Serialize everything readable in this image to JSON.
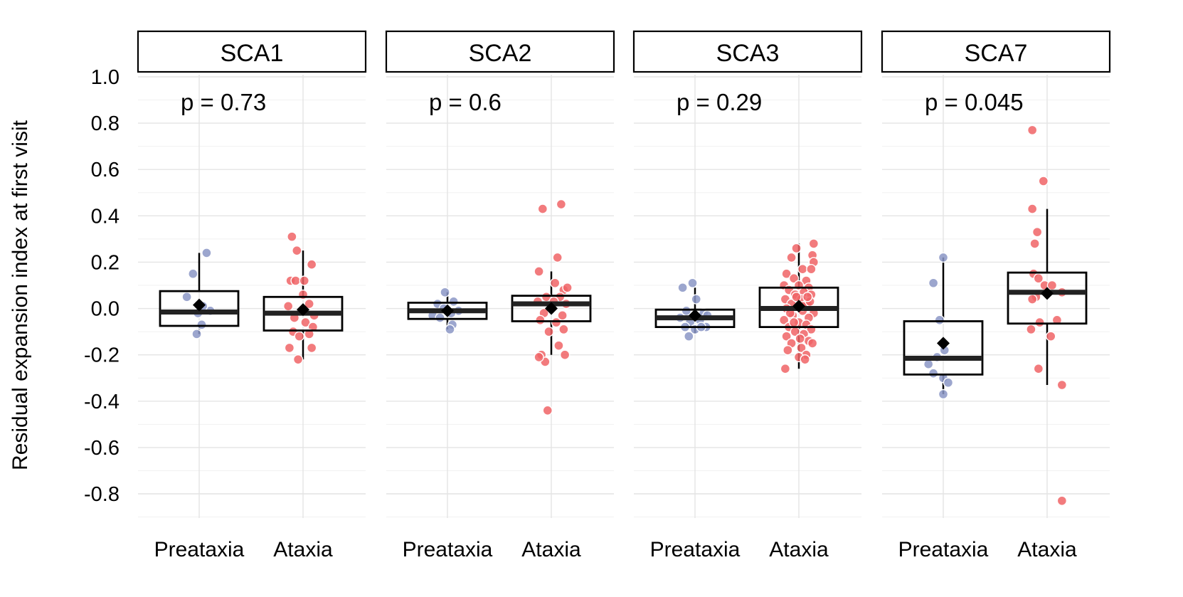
{
  "chart_data": {
    "type": "boxplot-faceted",
    "ylabel": "Residual expansion index at first visit",
    "ylim": [
      -0.9,
      1.0
    ],
    "yticks": [
      1.0,
      0.8,
      0.6,
      0.4,
      0.2,
      0.0,
      -0.2,
      -0.4,
      -0.6,
      -0.8
    ],
    "ytick_labels": [
      "1.0",
      "0.8",
      "0.6",
      "0.4",
      "0.2",
      "0.0",
      "-0.2",
      "-0.4",
      "-0.6",
      "-0.8"
    ],
    "categories": [
      "Preataxia",
      "Ataxia"
    ],
    "colors": {
      "Preataxia": "#8b96c6",
      "Ataxia": "#f06466",
      "box": "#000000",
      "mean_marker": "#000000",
      "grid": "#e6e6e6"
    },
    "panels": [
      {
        "title": "SCA1",
        "p_label": "p = 0.73",
        "groups": [
          {
            "name": "Preataxia",
            "q1": -0.075,
            "median": -0.015,
            "q3": 0.075,
            "whisker_low": -0.11,
            "whisker_high": 0.24,
            "mean": 0.015,
            "points": [
              [
                -0.05,
                0.15
              ],
              [
                -0.1,
                0.05
              ],
              [
                0.06,
                0.24
              ],
              [
                -0.01,
                -0.02
              ],
              [
                0.02,
                -0.07
              ],
              [
                -0.02,
                -0.11
              ],
              [
                0.09,
                -0.01
              ],
              [
                0.03,
                0.01
              ]
            ]
          },
          {
            "name": "Ataxia",
            "q1": -0.095,
            "median": -0.02,
            "q3": 0.05,
            "whisker_low": -0.22,
            "whisker_high": 0.25,
            "mean": -0.005,
            "points": [
              [
                -0.09,
                0.31
              ],
              [
                -0.05,
                0.25
              ],
              [
                0.07,
                0.19
              ],
              [
                -0.1,
                0.12
              ],
              [
                -0.06,
                0.12
              ],
              [
                -0.12,
                0.01
              ],
              [
                0.0,
                0.06
              ],
              [
                0.05,
                0.02
              ],
              [
                0.09,
                -0.03
              ],
              [
                -0.07,
                -0.04
              ],
              [
                0.02,
                -0.06
              ],
              [
                0.08,
                -0.08
              ],
              [
                -0.08,
                -0.1
              ],
              [
                -0.03,
                -0.12
              ],
              [
                0.05,
                -0.11
              ],
              [
                -0.11,
                -0.17
              ],
              [
                0.07,
                -0.17
              ],
              [
                -0.04,
                -0.22
              ],
              [
                0.01,
                0.12
              ]
            ]
          }
        ]
      },
      {
        "title": "SCA2",
        "p_label": "p = 0.6",
        "groups": [
          {
            "name": "Preataxia",
            "q1": -0.045,
            "median": -0.01,
            "q3": 0.025,
            "whisker_low": -0.09,
            "whisker_high": 0.07,
            "mean": -0.01,
            "points": [
              [
                -0.02,
                0.07
              ],
              [
                0.05,
                0.03
              ],
              [
                -0.08,
                0.02
              ],
              [
                0.09,
                -0.01
              ],
              [
                -0.12,
                -0.03
              ],
              [
                0.03,
                -0.02
              ],
              [
                -0.06,
                -0.04
              ],
              [
                0.04,
                -0.07
              ],
              [
                0.02,
                -0.09
              ],
              [
                -0.03,
                0.0
              ]
            ]
          },
          {
            "name": "Ataxia",
            "q1": -0.055,
            "median": 0.02,
            "q3": 0.055,
            "whisker_low": -0.2,
            "whisker_high": 0.16,
            "mean": 0.0,
            "points": [
              [
                0.08,
                0.45
              ],
              [
                -0.07,
                0.43
              ],
              [
                0.05,
                0.22
              ],
              [
                -0.1,
                0.16
              ],
              [
                0.03,
                0.11
              ],
              [
                0.1,
                0.08
              ],
              [
                0.13,
                0.09
              ],
              [
                -0.04,
                0.05
              ],
              [
                0.07,
                0.05
              ],
              [
                -0.11,
                0.03
              ],
              [
                0.12,
                0.02
              ],
              [
                0.0,
                0.0
              ],
              [
                -0.06,
                -0.02
              ],
              [
                0.09,
                -0.03
              ],
              [
                -0.09,
                -0.05
              ],
              [
                0.04,
                -0.06
              ],
              [
                0.1,
                -0.09
              ],
              [
                -0.02,
                -0.1
              ],
              [
                0.06,
                -0.16
              ],
              [
                -0.08,
                -0.2
              ],
              [
                0.11,
                -0.2
              ],
              [
                -0.05,
                -0.23
              ],
              [
                -0.1,
                -0.21
              ],
              [
                -0.03,
                -0.44
              ],
              [
                0.02,
                0.03
              ]
            ]
          }
        ]
      },
      {
        "title": "SCA3",
        "p_label": "p = 0.29",
        "groups": [
          {
            "name": "Preataxia",
            "q1": -0.08,
            "median": -0.04,
            "q3": -0.005,
            "whisker_low": -0.11,
            "whisker_high": 0.09,
            "mean": -0.03,
            "points": [
              [
                -0.02,
                0.11
              ],
              [
                -0.1,
                0.09
              ],
              [
                0.01,
                0.04
              ],
              [
                -0.07,
                -0.01
              ],
              [
                0.07,
                -0.02
              ],
              [
                -0.12,
                -0.04
              ],
              [
                0.04,
                -0.05
              ],
              [
                -0.04,
                -0.06
              ],
              [
                0.09,
                -0.08
              ],
              [
                -0.08,
                -0.08
              ],
              [
                0.0,
                -0.09
              ],
              [
                -0.05,
                -0.12
              ],
              [
                0.1,
                -0.03
              ],
              [
                0.05,
                -0.08
              ]
            ]
          },
          {
            "name": "Ataxia",
            "q1": -0.08,
            "median": 0.0,
            "q3": 0.09,
            "whisker_low": -0.26,
            "whisker_high": 0.28,
            "mean": 0.01,
            "points": [
              [
                0.12,
                0.28
              ],
              [
                -0.02,
                0.26
              ],
              [
                0.11,
                0.23
              ],
              [
                -0.06,
                0.22
              ],
              [
                0.12,
                0.2
              ],
              [
                0.03,
                0.17
              ],
              [
                0.1,
                0.17
              ],
              [
                -0.1,
                0.15
              ],
              [
                -0.04,
                0.13
              ],
              [
                0.06,
                0.12
              ],
              [
                -0.12,
                0.1
              ],
              [
                0.0,
                0.1
              ],
              [
                0.08,
                0.09
              ],
              [
                -0.08,
                0.08
              ],
              [
                0.04,
                0.07
              ],
              [
                -0.03,
                0.06
              ],
              [
                0.1,
                0.06
              ],
              [
                -0.11,
                0.04
              ],
              [
                0.02,
                0.04
              ],
              [
                -0.06,
                0.02
              ],
              [
                0.07,
                0.02
              ],
              [
                -0.1,
                0.0
              ],
              [
                0.03,
                -0.01
              ],
              [
                0.12,
                -0.02
              ],
              [
                -0.05,
                -0.03
              ],
              [
                0.08,
                -0.04
              ],
              [
                -0.12,
                -0.05
              ],
              [
                0.0,
                -0.06
              ],
              [
                0.06,
                -0.07
              ],
              [
                -0.08,
                -0.08
              ],
              [
                0.1,
                -0.09
              ],
              [
                -0.03,
                -0.1
              ],
              [
                0.04,
                -0.11
              ],
              [
                -0.1,
                -0.12
              ],
              [
                0.08,
                -0.14
              ],
              [
                -0.06,
                -0.15
              ],
              [
                0.11,
                -0.15
              ],
              [
                0.02,
                -0.17
              ],
              [
                -0.09,
                -0.18
              ],
              [
                0.06,
                -0.2
              ],
              [
                0.0,
                -0.21
              ],
              [
                0.05,
                -0.22
              ],
              [
                -0.11,
                -0.26
              ],
              [
                0.03,
                0.01
              ],
              [
                -0.02,
                0.05
              ],
              [
                0.09,
                0.03
              ],
              [
                -0.07,
                -0.02
              ],
              [
                0.01,
                -0.13
              ],
              [
                -0.04,
                -0.06
              ],
              [
                0.07,
                0.05
              ]
            ]
          }
        ]
      },
      {
        "title": "SCA7",
        "p_label": "p = 0.045",
        "groups": [
          {
            "name": "Preataxia",
            "q1": -0.285,
            "median": -0.215,
            "q3": -0.055,
            "whisker_low": -0.37,
            "whisker_high": 0.22,
            "mean": -0.15,
            "points": [
              [
                0.0,
                0.22
              ],
              [
                -0.08,
                0.11
              ],
              [
                -0.03,
                -0.05
              ],
              [
                -0.12,
                -0.24
              ],
              [
                -0.05,
                -0.21
              ],
              [
                0.01,
                -0.18
              ],
              [
                -0.08,
                -0.28
              ],
              [
                0.0,
                -0.3
              ],
              [
                0.04,
                -0.32
              ],
              [
                0.0,
                -0.37
              ]
            ]
          },
          {
            "name": "Ataxia",
            "q1": -0.065,
            "median": 0.07,
            "q3": 0.155,
            "whisker_low": -0.33,
            "whisker_high": 0.43,
            "mean": 0.065,
            "points": [
              [
                -0.12,
                0.77
              ],
              [
                -0.03,
                0.55
              ],
              [
                -0.12,
                0.43
              ],
              [
                -0.08,
                0.33
              ],
              [
                -0.1,
                0.28
              ],
              [
                -0.11,
                0.15
              ],
              [
                -0.07,
                0.13
              ],
              [
                -0.02,
                0.1
              ],
              [
                0.04,
                0.1
              ],
              [
                -0.09,
                0.05
              ],
              [
                0.12,
                0.07
              ],
              [
                -0.12,
                0.04
              ],
              [
                -0.06,
                -0.06
              ],
              [
                0.08,
                -0.05
              ],
              [
                -0.13,
                -0.09
              ],
              [
                0.03,
                -0.12
              ],
              [
                -0.07,
                -0.26
              ],
              [
                0.12,
                -0.33
              ],
              [
                0.12,
                -0.83
              ]
            ]
          }
        ]
      }
    ]
  }
}
